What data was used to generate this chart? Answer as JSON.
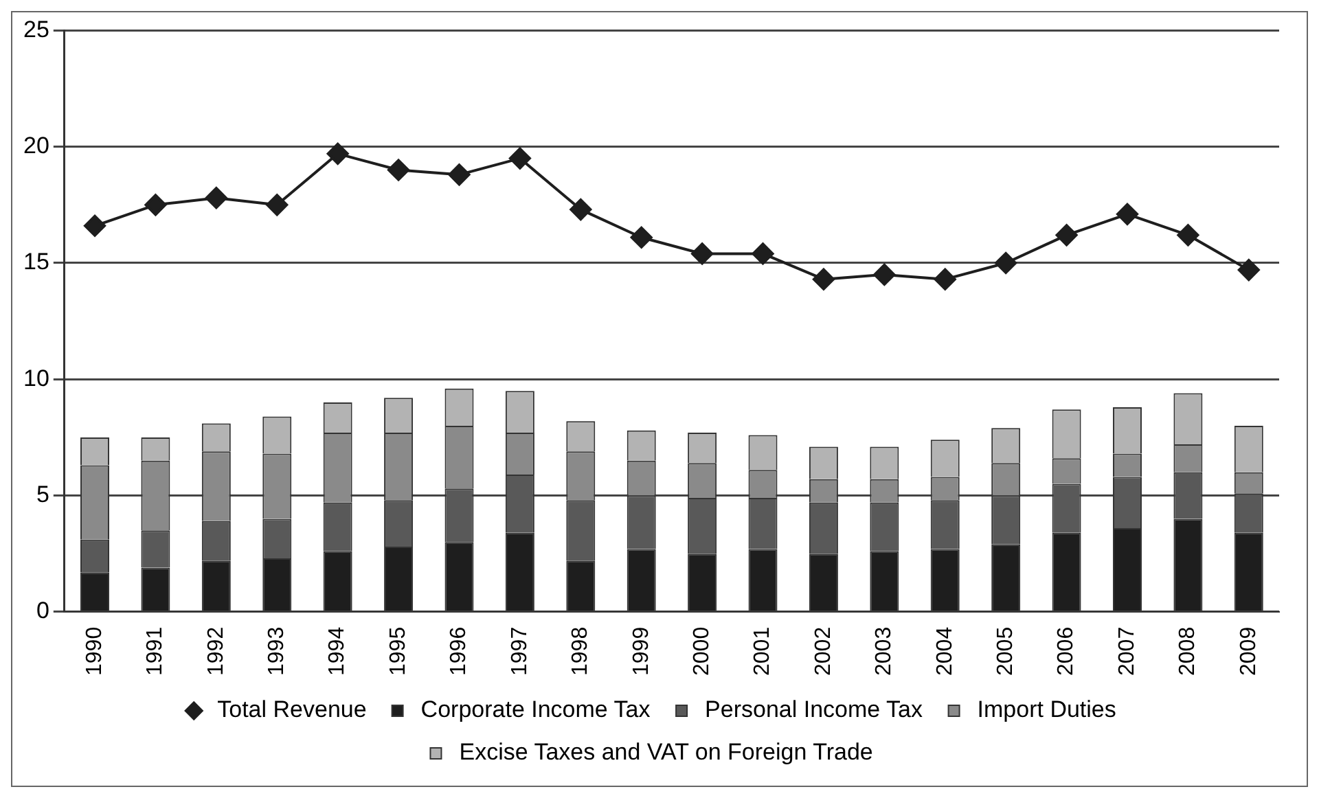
{
  "chart_data": {
    "type": "bar",
    "stacked": true,
    "categories": [
      "1990",
      "1991",
      "1992",
      "1993",
      "1994",
      "1995",
      "1996",
      "1997",
      "1998",
      "1999",
      "2000",
      "2001",
      "2002",
      "2003",
      "2004",
      "2005",
      "2006",
      "2007",
      "2008",
      "2009"
    ],
    "series": [
      {
        "name": "Corporate Income Tax",
        "color": "#1e1e1e",
        "values": [
          1.7,
          1.9,
          2.2,
          2.3,
          2.6,
          2.8,
          3.0,
          3.4,
          2.2,
          2.7,
          2.5,
          2.7,
          2.5,
          2.6,
          2.7,
          2.9,
          3.4,
          3.6,
          4.0,
          3.4
        ]
      },
      {
        "name": "Personal Income Tax",
        "color": "#595959",
        "values": [
          1.4,
          1.6,
          1.7,
          1.7,
          2.1,
          2.0,
          2.3,
          2.5,
          2.6,
          2.3,
          2.4,
          2.2,
          2.2,
          2.1,
          2.1,
          2.1,
          2.1,
          2.2,
          2.0,
          1.7
        ]
      },
      {
        "name": "Import Duties",
        "color": "#8a8a8a",
        "values": [
          3.2,
          3.0,
          3.0,
          2.8,
          3.0,
          2.9,
          2.7,
          1.8,
          2.1,
          1.5,
          1.5,
          1.2,
          1.0,
          1.0,
          1.0,
          1.4,
          1.1,
          1.0,
          1.2,
          0.9
        ]
      },
      {
        "name": "Excise Taxes and VAT on Foreign Trade",
        "color": "#b3b3b3",
        "values": [
          1.2,
          1.0,
          1.2,
          1.6,
          1.3,
          1.5,
          1.6,
          1.8,
          1.3,
          1.3,
          1.3,
          1.5,
          1.4,
          1.4,
          1.6,
          1.5,
          2.1,
          2.0,
          2.2,
          2.0
        ]
      },
      {
        "name": "Total Revenue",
        "type": "line",
        "color": "#1e1e1e",
        "marker": "diamond",
        "values": [
          16.6,
          17.5,
          17.8,
          17.5,
          19.7,
          19.0,
          18.8,
          19.5,
          17.3,
          16.1,
          15.4,
          15.4,
          14.3,
          14.5,
          14.3,
          15.0,
          16.2,
          17.1,
          16.2,
          14.7
        ]
      }
    ],
    "ylim": [
      0,
      25
    ],
    "yticks": [
      0,
      5,
      10,
      15,
      20,
      25
    ],
    "grid": "y",
    "legend": "bottom"
  }
}
